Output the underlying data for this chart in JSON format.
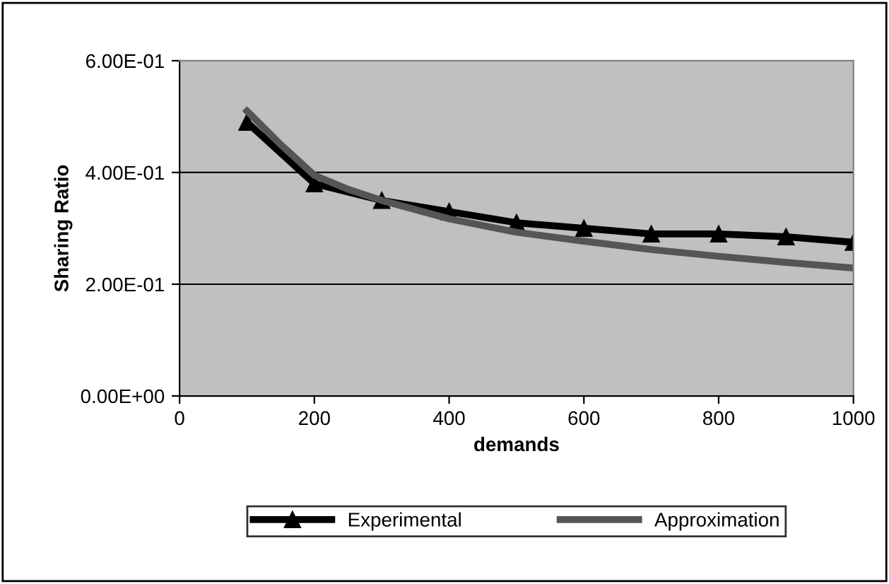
{
  "chart_data": {
    "type": "line",
    "xlabel": "demands",
    "ylabel": "Sharing Ratio",
    "xlim": [
      0,
      1000
    ],
    "xticks": [
      0,
      200,
      400,
      600,
      800,
      1000
    ],
    "ylim": [
      0,
      0.6
    ],
    "yticks": [
      {
        "value": 0,
        "label": "0.00E+00"
      },
      {
        "value": 0.2,
        "label": "2.00E-01"
      },
      {
        "value": 0.4,
        "label": "4.00E-01"
      },
      {
        "value": 0.6,
        "label": "6.00E-01"
      }
    ],
    "grid": "y",
    "legend": "bottom",
    "series": [
      {
        "name": "Experimental",
        "color": "#000000",
        "marker": "triangle",
        "x": [
          100,
          200,
          300,
          400,
          500,
          600,
          700,
          800,
          900,
          1000
        ],
        "values": [
          0.49,
          0.38,
          0.35,
          0.33,
          0.31,
          0.3,
          0.29,
          0.29,
          0.285,
          0.275
        ]
      },
      {
        "name": "Approximation",
        "color": "#555555",
        "marker": "none",
        "x": [
          100,
          150,
          200,
          250,
          300,
          400,
          500,
          600,
          700,
          800,
          900,
          1000
        ],
        "values": [
          0.51,
          0.45,
          0.395,
          0.37,
          0.35,
          0.317,
          0.293,
          0.277,
          0.262,
          0.25,
          0.239,
          0.229
        ]
      }
    ]
  }
}
